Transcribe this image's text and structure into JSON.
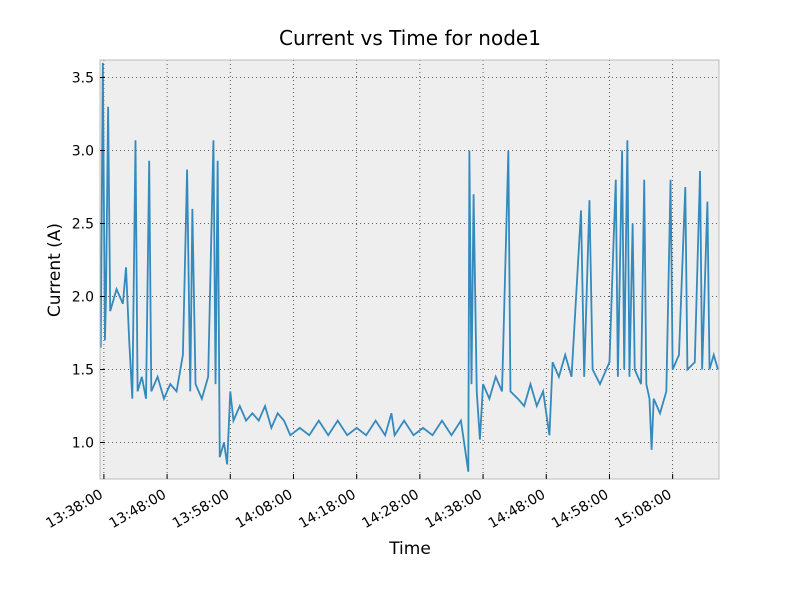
{
  "chart_data": {
    "type": "line",
    "title": "Current vs Time for node1",
    "x_label": "Time",
    "y_label": "Current (A)",
    "x": [
      "13:37:30",
      "13:37:50",
      "13:38:10",
      "13:38:20",
      "13:38:40",
      "13:39:00",
      "13:40:00",
      "13:41:00",
      "13:41:30",
      "13:42:00",
      "13:42:30",
      "13:43:00",
      "13:43:20",
      "13:44:00",
      "13:44:40",
      "13:45:10",
      "13:45:30",
      "13:46:30",
      "13:47:30",
      "13:48:30",
      "13:49:30",
      "13:50:30",
      "13:51:10",
      "13:51:40",
      "13:52:00",
      "13:52:30",
      "13:53:30",
      "13:54:30",
      "13:55:20",
      "13:55:40",
      "13:56:00",
      "13:56:20",
      "13:57:00",
      "13:57:30",
      "13:58:00",
      "13:58:30",
      "13:59:30",
      "14:00:30",
      "14:01:30",
      "14:02:30",
      "14:03:30",
      "14:04:30",
      "14:05:30",
      "14:06:30",
      "14:07:30",
      "14:09:00",
      "14:10:30",
      "14:12:00",
      "14:13:30",
      "14:15:00",
      "14:16:30",
      "14:18:00",
      "14:19:30",
      "14:21:00",
      "14:22:30",
      "14:23:30",
      "14:24:00",
      "14:25:30",
      "14:27:00",
      "14:28:30",
      "14:30:00",
      "14:31:30",
      "14:33:00",
      "14:34:30",
      "14:35:40",
      "14:35:50",
      "14:36:10",
      "14:36:30",
      "14:37:00",
      "14:37:30",
      "14:38:00",
      "14:39:00",
      "14:40:00",
      "14:41:00",
      "14:42:00",
      "14:42:20",
      "14:43:30",
      "14:44:30",
      "14:45:30",
      "14:46:30",
      "14:47:30",
      "14:48:30",
      "14:49:00",
      "14:50:00",
      "14:51:00",
      "14:52:00",
      "14:53:30",
      "14:54:00",
      "14:54:50",
      "14:55:20",
      "14:56:30",
      "14:58:00",
      "14:58:40",
      "14:59:00",
      "14:59:20",
      "15:00:00",
      "15:00:20",
      "15:00:50",
      "15:01:10",
      "15:01:40",
      "15:02:00",
      "15:03:00",
      "15:03:30",
      "15:03:50",
      "15:04:20",
      "15:04:40",
      "15:05:00",
      "15:06:00",
      "15:07:00",
      "15:07:40",
      "15:08:00",
      "15:09:00",
      "15:10:00",
      "15:10:20",
      "15:11:30",
      "15:12:20",
      "15:12:40",
      "15:13:30",
      "15:13:50",
      "15:14:30",
      "15:15:10"
    ],
    "series": [
      {
        "name": "node1",
        "color": "#348abd",
        "values": [
          1.65,
          3.6,
          1.7,
          2.0,
          3.3,
          1.9,
          2.05,
          1.95,
          2.2,
          1.7,
          1.3,
          3.07,
          1.35,
          1.45,
          1.3,
          2.93,
          1.35,
          1.45,
          1.3,
          1.4,
          1.35,
          1.6,
          2.87,
          1.35,
          2.6,
          1.4,
          1.3,
          1.45,
          3.07,
          1.4,
          2.93,
          0.9,
          1.0,
          0.85,
          1.35,
          1.15,
          1.25,
          1.15,
          1.2,
          1.15,
          1.25,
          1.1,
          1.2,
          1.15,
          1.05,
          1.1,
          1.05,
          1.15,
          1.05,
          1.15,
          1.05,
          1.1,
          1.05,
          1.15,
          1.05,
          1.2,
          1.05,
          1.15,
          1.05,
          1.1,
          1.05,
          1.15,
          1.05,
          1.15,
          0.8,
          3.0,
          1.4,
          2.7,
          1.35,
          1.02,
          1.4,
          1.3,
          1.45,
          1.35,
          3.0,
          1.35,
          1.3,
          1.25,
          1.4,
          1.25,
          1.35,
          1.05,
          1.55,
          1.45,
          1.6,
          1.45,
          2.59,
          1.45,
          2.66,
          1.5,
          1.4,
          1.55,
          2.4,
          2.8,
          1.45,
          3.0,
          1.5,
          3.07,
          1.45,
          2.5,
          1.5,
          1.4,
          2.8,
          1.4,
          1.3,
          0.95,
          1.3,
          1.2,
          1.35,
          2.8,
          1.5,
          1.6,
          2.75,
          1.5,
          1.55,
          2.86,
          1.5,
          2.65,
          1.5,
          1.6,
          1.5
        ]
      }
    ],
    "xlim": [
      "13:37:23",
      "15:15:20"
    ],
    "xticks": [
      "13:38:00",
      "13:48:00",
      "13:58:00",
      "14:08:00",
      "14:18:00",
      "14:28:00",
      "14:38:00",
      "14:48:00",
      "14:58:00",
      "15:08:00"
    ],
    "ylim": [
      0.75,
      3.62
    ],
    "yticks": [
      {
        "value": 1,
        "label": "1.0"
      },
      1.5,
      {
        "value": 2,
        "label": "2.0"
      },
      2.5,
      {
        "value": 3,
        "label": "3.0"
      },
      3.5
    ],
    "grid": true
  }
}
